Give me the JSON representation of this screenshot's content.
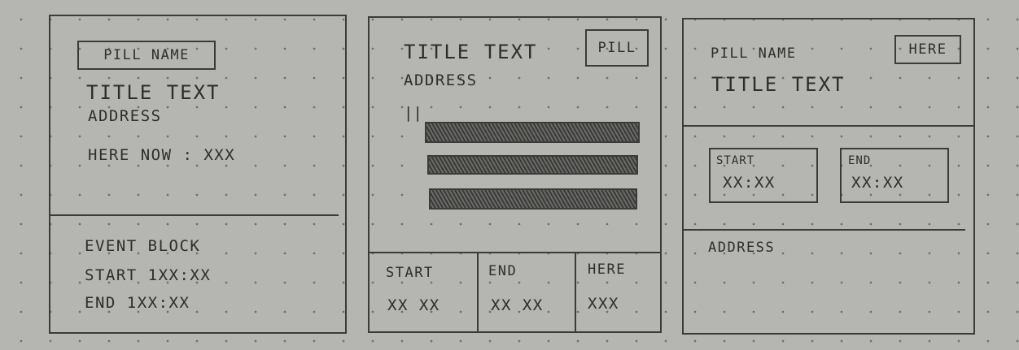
{
  "card1": {
    "pill": "PILL NAME",
    "title": "TITLE TEXT",
    "address": "ADDRESS",
    "here_now": "HERE NOW : XXX",
    "event_block": "EVENT BLOCK",
    "start": "START 1XX:XX",
    "end": "END 1XX:XX"
  },
  "card2": {
    "title": "TITLE TEXT",
    "pill": "PILL",
    "address": "ADDRESS",
    "marker": "||",
    "bars_count": 3,
    "cells": [
      {
        "label": "START",
        "value": "XX XX"
      },
      {
        "label": "END",
        "value": "XX XX"
      },
      {
        "label": "HERE",
        "value": "XXX"
      }
    ]
  },
  "card3": {
    "pill": "PILL NAME",
    "here_button": "HERE",
    "title": "TITLE TEXT",
    "start_label": "START",
    "start_value": "XX:XX",
    "end_label": "END",
    "end_value": "XX:XX",
    "address": "ADDRESS"
  }
}
